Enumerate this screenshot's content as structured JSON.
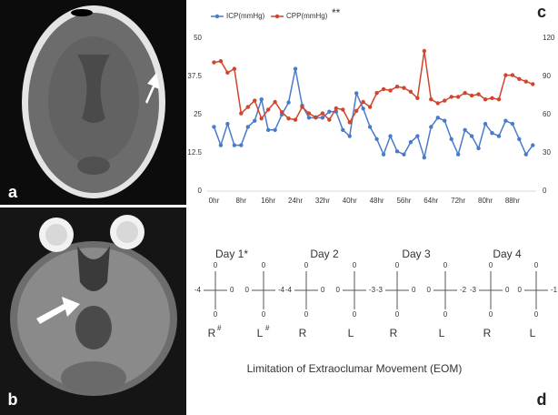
{
  "panel_labels": [
    "a",
    "b",
    "c",
    "d"
  ],
  "chart_data": {
    "type": "line",
    "annotation": "**",
    "legend": "top",
    "x": [
      0,
      2,
      4,
      6,
      8,
      10,
      12,
      14,
      16,
      18,
      20,
      22,
      24,
      26,
      28,
      30,
      32,
      34,
      36,
      38,
      40,
      42,
      44,
      46,
      48,
      50,
      52,
      54,
      56,
      58,
      60,
      62,
      64,
      66,
      68,
      70,
      72,
      74,
      76,
      78,
      80,
      82,
      84,
      86,
      88,
      90,
      92,
      94
    ],
    "xlim": [
      -2,
      95
    ],
    "xticks": [
      {
        "value": 0,
        "label": "0hr"
      },
      {
        "value": 8,
        "label": "8hr"
      },
      {
        "value": 16,
        "label": "16hr"
      },
      {
        "value": 24,
        "label": "24hr"
      },
      {
        "value": 32,
        "label": "32hr"
      },
      {
        "value": 40,
        "label": "40hr"
      },
      {
        "value": 48,
        "label": "48hr"
      },
      {
        "value": 56,
        "label": "56hr"
      },
      {
        "value": 64,
        "label": "64hr"
      },
      {
        "value": 72,
        "label": "72hr"
      },
      {
        "value": 80,
        "label": "80hr"
      },
      {
        "value": 88,
        "label": "88hr"
      }
    ],
    "ylim": [
      0,
      50
    ],
    "yticks": [
      0,
      12.5,
      25,
      37.5,
      50
    ],
    "y2lim": [
      0,
      120
    ],
    "y2ticks": [
      0,
      30,
      60,
      90,
      120
    ],
    "series": [
      {
        "name": "ICP(mmHg)",
        "color": "#4a7bc8",
        "values": [
          21,
          15,
          22,
          15,
          15,
          21,
          23,
          30,
          20,
          20,
          25,
          29,
          40,
          28,
          24,
          24,
          24,
          26,
          26,
          20,
          18,
          32,
          27,
          21,
          17,
          12,
          18,
          13,
          12,
          16,
          18,
          11,
          21,
          24,
          23,
          17,
          12,
          20,
          18,
          14,
          22,
          19,
          18,
          23,
          22,
          17,
          12,
          15
        ]
      },
      {
        "name": "CPP(mmHg)",
        "color": "#d0452c",
        "axis": "y2",
        "values": [
          101,
          102,
          93,
          96,
          61,
          66,
          71,
          57,
          64,
          70,
          62,
          57,
          56,
          66,
          61,
          58,
          61,
          56,
          65,
          64,
          54,
          63,
          70,
          66,
          77,
          80,
          79,
          82,
          81,
          78,
          73,
          110,
          72,
          69,
          71,
          74,
          74,
          77,
          75,
          76,
          72,
          73,
          72,
          91,
          91,
          88,
          86,
          84
        ]
      }
    ]
  },
  "eom": {
    "caption": "Limitation of Extraoclumar Movement (EOM)",
    "days": [
      {
        "label": "Day 1*",
        "right_eye": {
          "label": "R",
          "mark": "#",
          "top": 0,
          "left": -4,
          "right": 0,
          "bottom": 0
        },
        "left_eye": {
          "label": "L",
          "mark": "#",
          "top": 0,
          "left": 0,
          "right": -4,
          "bottom": 0
        }
      },
      {
        "label": "Day 2",
        "right_eye": {
          "label": "R",
          "top": 0,
          "left": -4,
          "right": 0,
          "bottom": 0
        },
        "left_eye": {
          "label": "L",
          "top": 0,
          "left": 0,
          "right": -3,
          "bottom": 0
        }
      },
      {
        "label": "Day 3",
        "right_eye": {
          "label": "R",
          "top": 0,
          "left": -3,
          "right": 0,
          "bottom": 0
        },
        "left_eye": {
          "label": "L",
          "top": 0,
          "left": 0,
          "right": -2,
          "bottom": 0
        }
      },
      {
        "label": "Day 4",
        "right_eye": {
          "label": "R",
          "top": 0,
          "left": -3,
          "right": 0,
          "bottom": 0
        },
        "left_eye": {
          "label": "L",
          "top": 0,
          "left": 0,
          "right": -1,
          "bottom": 0
        }
      }
    ]
  }
}
